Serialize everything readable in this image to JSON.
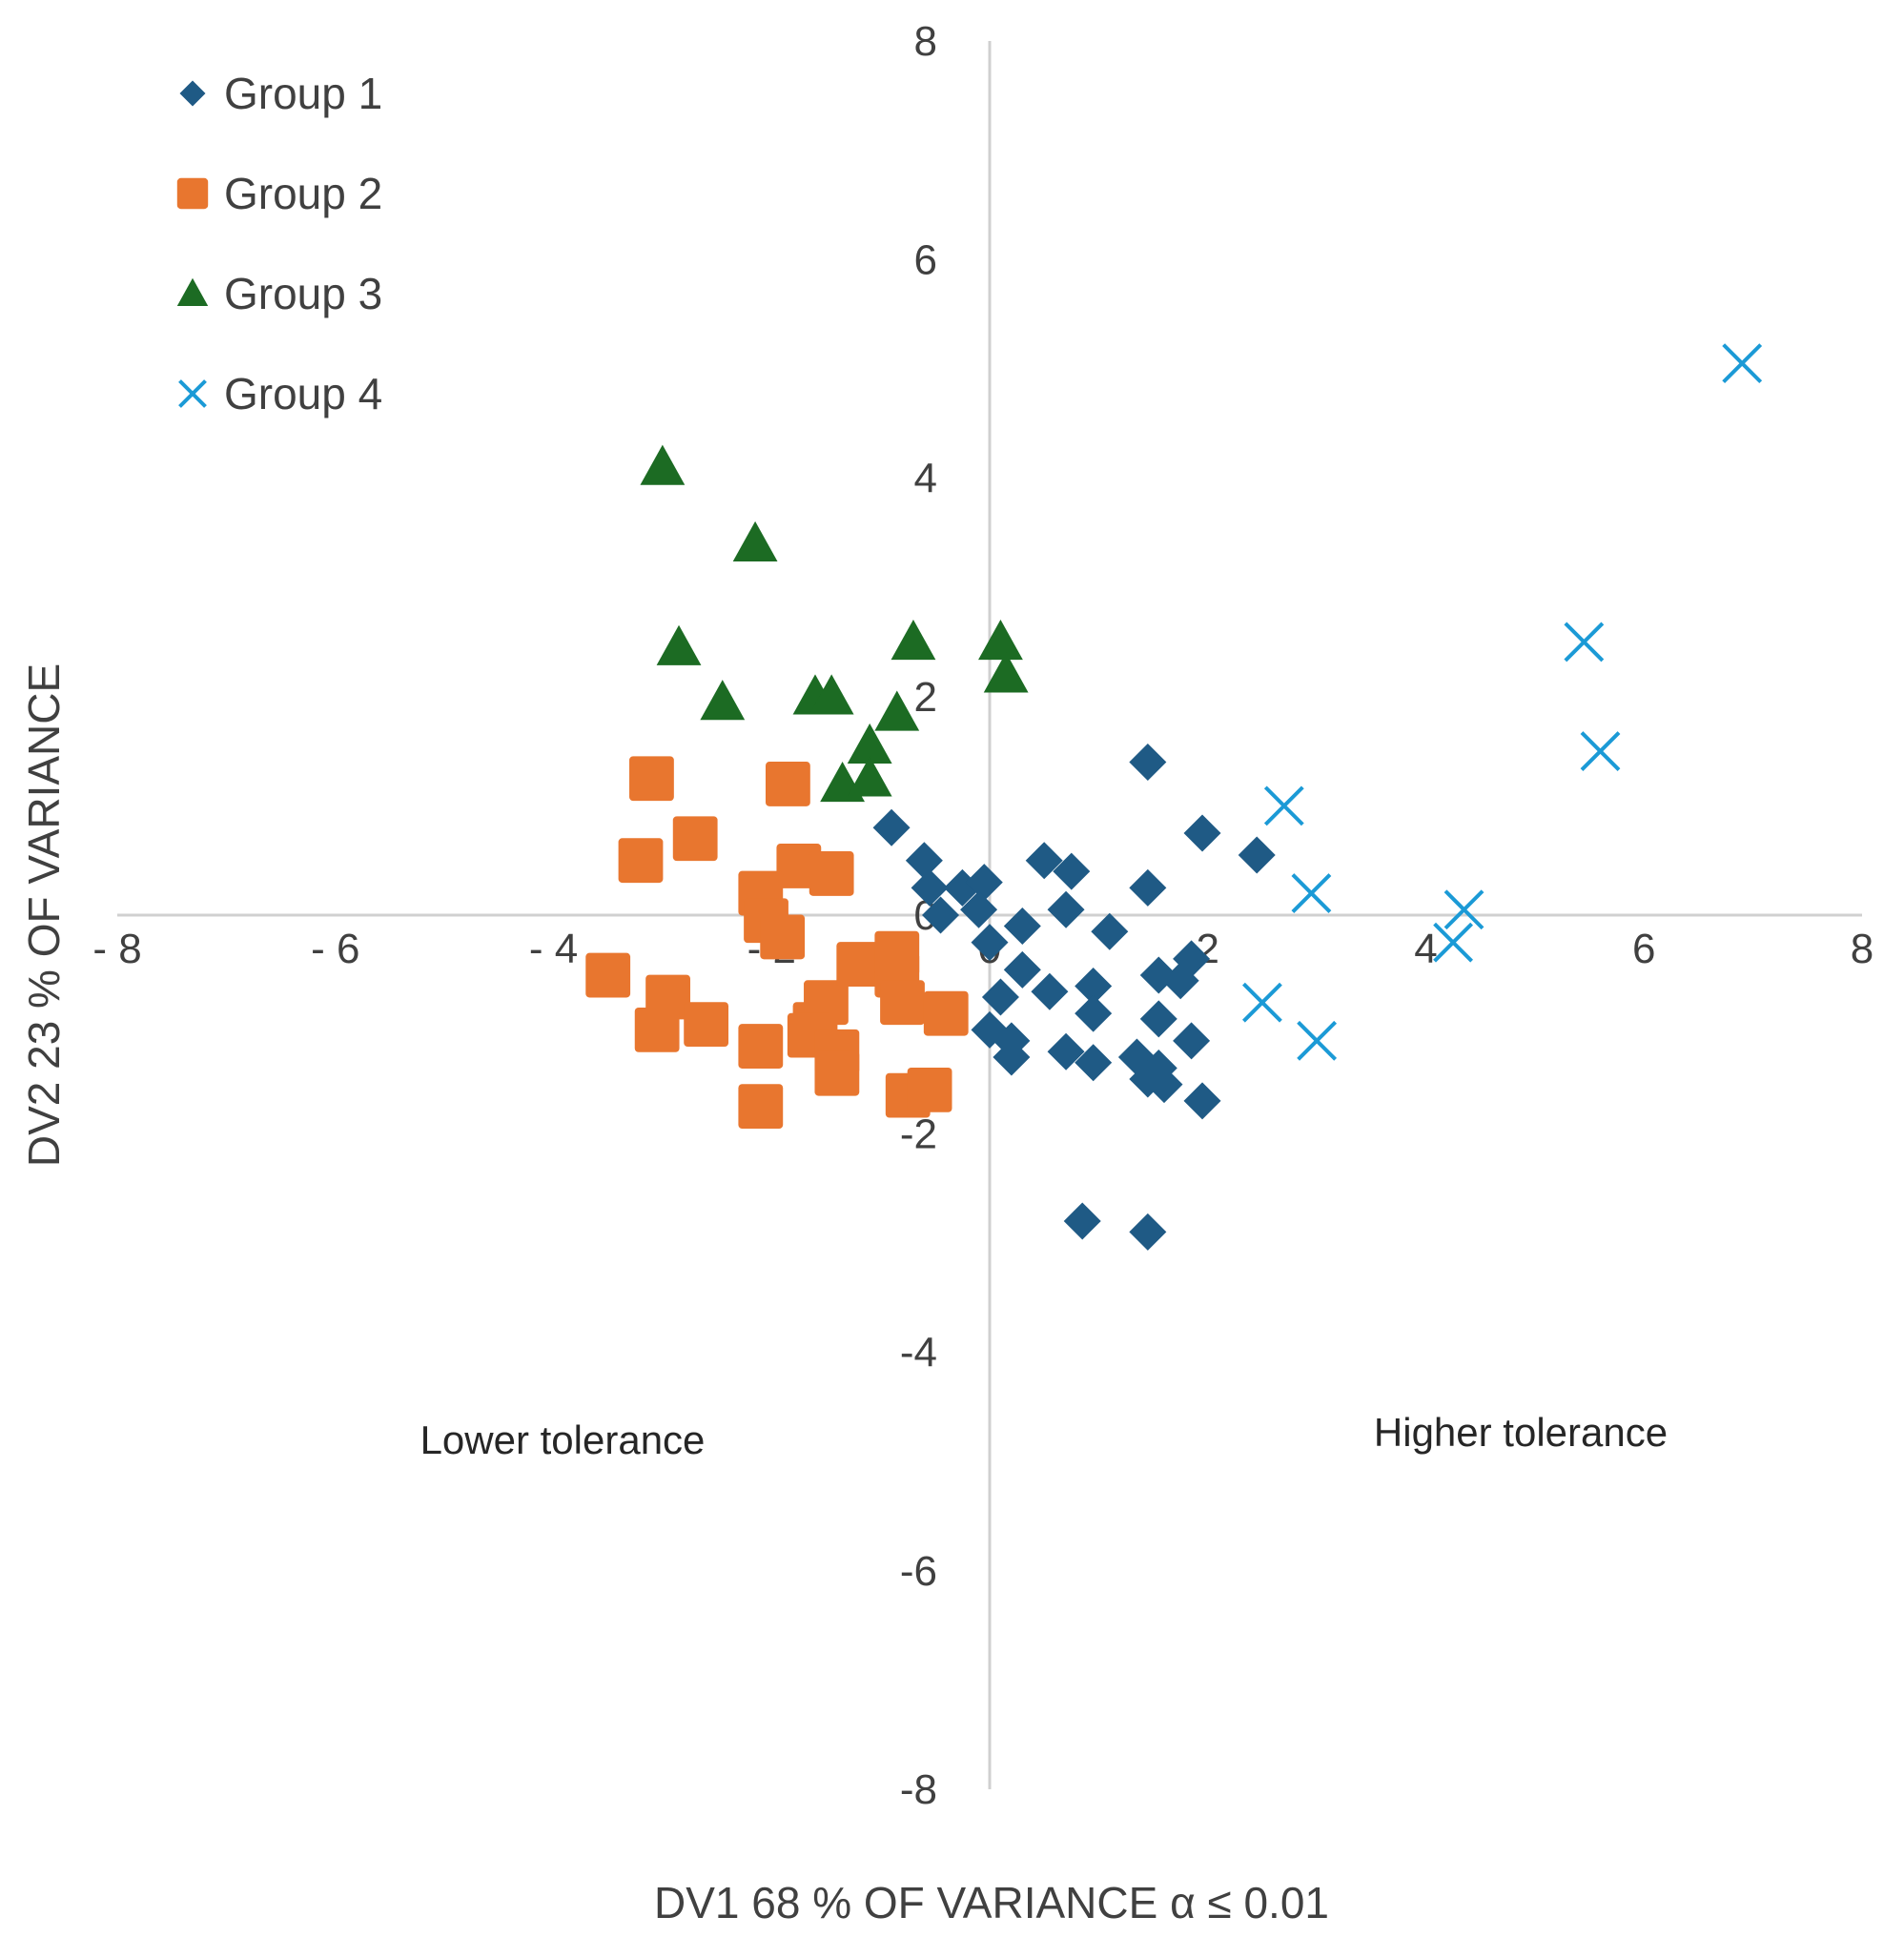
{
  "chart_data": {
    "type": "scatter",
    "xlabel": "DV1 68 % OF VARIANCE α ≤ 0.01",
    "ylabel": "DV2 23 % OF VARIANCE",
    "xlim": [
      -8,
      8
    ],
    "ylim": [
      -8,
      8
    ],
    "x_ticks": [
      -8,
      -6,
      -4,
      -2,
      0,
      2,
      4,
      6,
      8
    ],
    "y_ticks": [
      -8,
      -6,
      -4,
      -2,
      0,
      2,
      4,
      6,
      8
    ],
    "x_tick_labels": [
      "- 8",
      "- 6",
      "- 4",
      "- 2",
      "0",
      "2",
      "4",
      "6",
      "8"
    ],
    "y_tick_labels": [
      "-8",
      "-6",
      "-4",
      "-2",
      "0",
      "2",
      "4",
      "6",
      "8"
    ],
    "grid": false,
    "legend_position": "top-left",
    "annotations": [
      {
        "text": "Lower tolerance",
        "x": -3.9,
        "y": -4.8
      },
      {
        "text": "Higher tolerance",
        "x": 5.0,
        "y": -4.7
      }
    ],
    "series": [
      {
        "name": "Group 1",
        "marker": "diamond",
        "color": "#1f5a85",
        "points": [
          [
            -0.9,
            0.8
          ],
          [
            -0.6,
            0.5
          ],
          [
            -0.55,
            0.25
          ],
          [
            -0.45,
            0.0
          ],
          [
            -0.25,
            0.25
          ],
          [
            -0.05,
            0.3
          ],
          [
            -0.1,
            0.05
          ],
          [
            0.0,
            -0.25
          ],
          [
            0.3,
            -0.1
          ],
          [
            0.5,
            0.5
          ],
          [
            0.75,
            0.4
          ],
          [
            0.7,
            0.05
          ],
          [
            1.1,
            -0.15
          ],
          [
            1.45,
            0.25
          ],
          [
            1.45,
            1.4
          ],
          [
            1.95,
            0.75
          ],
          [
            2.45,
            0.55
          ],
          [
            0.3,
            -0.5
          ],
          [
            0.1,
            -0.75
          ],
          [
            0.55,
            -0.7
          ],
          [
            0.95,
            -0.65
          ],
          [
            1.55,
            -0.55
          ],
          [
            1.85,
            -0.4
          ],
          [
            1.75,
            -0.6
          ],
          [
            0.95,
            -0.9
          ],
          [
            0.0,
            -1.05
          ],
          [
            0.2,
            -1.15
          ],
          [
            0.7,
            -1.25
          ],
          [
            0.95,
            -1.35
          ],
          [
            1.35,
            -1.3
          ],
          [
            1.55,
            -1.4
          ],
          [
            1.45,
            -1.5
          ],
          [
            1.6,
            -1.55
          ],
          [
            1.85,
            -1.15
          ],
          [
            1.95,
            -1.7
          ],
          [
            0.85,
            -2.8
          ],
          [
            1.45,
            -2.9
          ],
          [
            0.2,
            -1.3
          ],
          [
            1.55,
            -0.95
          ]
        ]
      },
      {
        "name": "Group 2",
        "marker": "square",
        "color": "#e8762f",
        "points": [
          [
            -3.1,
            1.25
          ],
          [
            -3.2,
            0.5
          ],
          [
            -2.7,
            0.7
          ],
          [
            -1.85,
            1.2
          ],
          [
            -1.75,
            0.45
          ],
          [
            -1.45,
            0.38
          ],
          [
            -2.1,
            0.2
          ],
          [
            -2.05,
            -0.05
          ],
          [
            -1.9,
            -0.2
          ],
          [
            -3.5,
            -0.55
          ],
          [
            -2.95,
            -0.75
          ],
          [
            -3.05,
            -1.05
          ],
          [
            -2.6,
            -1.0
          ],
          [
            -2.1,
            -1.2
          ],
          [
            -1.6,
            -1.0
          ],
          [
            -1.5,
            -0.8
          ],
          [
            -1.2,
            -0.45
          ],
          [
            -0.85,
            -0.55
          ],
          [
            -0.85,
            -0.35
          ],
          [
            -0.8,
            -0.8
          ],
          [
            -0.4,
            -0.9
          ],
          [
            -1.65,
            -1.1
          ],
          [
            -1.4,
            -1.25
          ],
          [
            -1.4,
            -1.45
          ],
          [
            -2.1,
            -1.75
          ],
          [
            -0.75,
            -1.65
          ],
          [
            -0.55,
            -1.6
          ]
        ]
      },
      {
        "name": "Group 3",
        "marker": "triangle",
        "color": "#1c6b23",
        "points": [
          [
            -3.0,
            4.1
          ],
          [
            -2.15,
            3.4
          ],
          [
            -2.85,
            2.45
          ],
          [
            -2.45,
            1.95
          ],
          [
            -1.6,
            2.0
          ],
          [
            -1.45,
            2.0
          ],
          [
            -0.7,
            2.5
          ],
          [
            0.1,
            2.5
          ],
          [
            0.15,
            2.2
          ],
          [
            -0.85,
            1.85
          ],
          [
            -1.1,
            1.55
          ],
          [
            -1.35,
            1.2
          ],
          [
            -1.1,
            1.25
          ]
        ]
      },
      {
        "name": "Group 4",
        "marker": "x",
        "color": "#1b9ad6",
        "points": [
          [
            6.9,
            5.05
          ],
          [
            5.45,
            2.5
          ],
          [
            5.6,
            1.5
          ],
          [
            2.7,
            1.0
          ],
          [
            2.95,
            0.2
          ],
          [
            4.35,
            0.05
          ],
          [
            4.25,
            -0.25
          ],
          [
            2.5,
            -0.8
          ],
          [
            3.0,
            -1.15
          ]
        ]
      }
    ]
  }
}
